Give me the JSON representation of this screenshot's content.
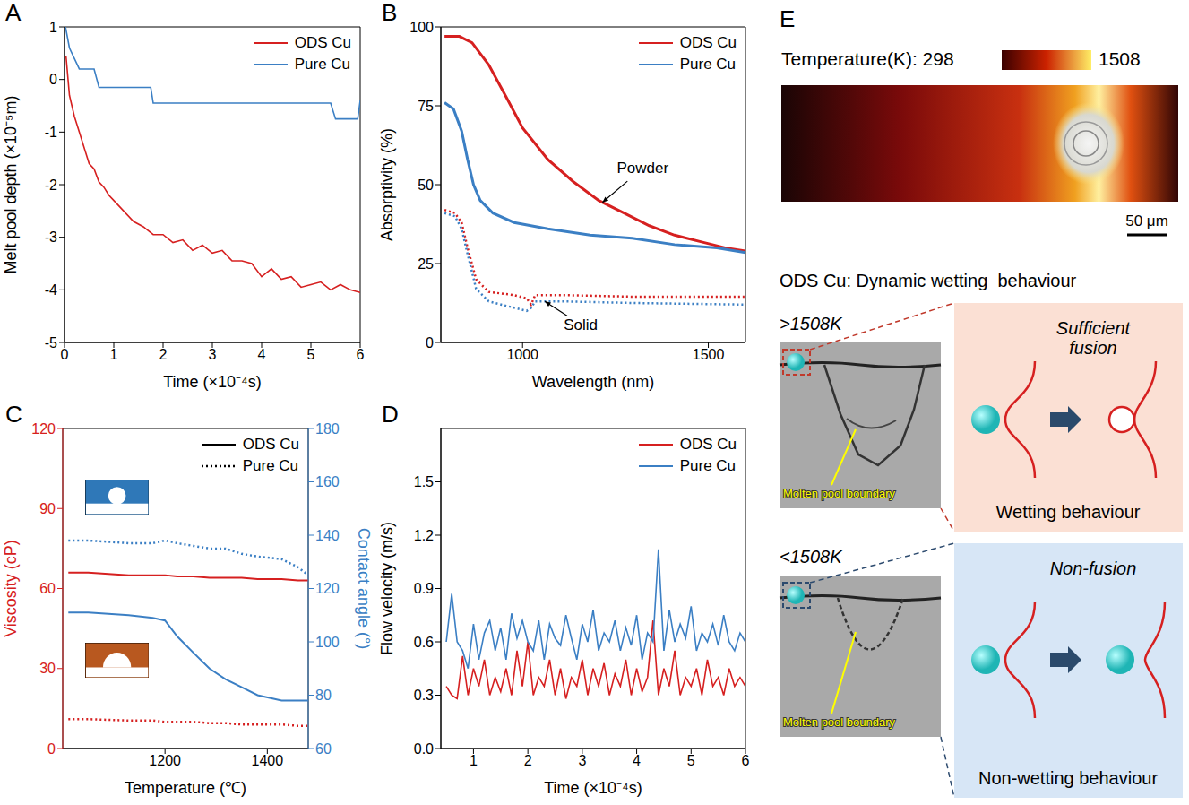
{
  "chart_data": [
    {
      "panel": "A",
      "type": "line",
      "x_label": "Time (×10⁻⁴s)",
      "y_label": "Melt pool depth (×10⁻⁵m)",
      "xlim": [
        0,
        6
      ],
      "xticks": [
        0,
        1,
        2,
        3,
        4,
        5,
        6
      ],
      "ylim": [
        -5,
        1
      ],
      "yticks": [
        -5,
        -4,
        -3,
        -2,
        -1,
        0,
        1
      ],
      "grid": false,
      "legend": "upper right",
      "series": [
        {
          "name": "ODS Cu",
          "color": "#d62020",
          "line_style": "solid",
          "x": [
            0.03,
            0.1,
            0.2,
            0.3,
            0.4,
            0.5,
            0.6,
            0.7,
            0.8,
            0.9,
            1.0,
            1.2,
            1.4,
            1.6,
            1.8,
            2.0,
            2.2,
            2.4,
            2.6,
            2.8,
            3.0,
            3.2,
            3.4,
            3.6,
            3.8,
            4.0,
            4.2,
            4.4,
            4.6,
            4.8,
            5.0,
            5.2,
            5.4,
            5.6,
            5.8,
            6.0
          ],
          "values": [
            0.45,
            -0.3,
            -0.7,
            -1.0,
            -1.3,
            -1.6,
            -1.7,
            -1.95,
            -2.05,
            -2.2,
            -2.3,
            -2.5,
            -2.7,
            -2.8,
            -2.95,
            -2.95,
            -3.1,
            -3.05,
            -3.25,
            -3.15,
            -3.3,
            -3.25,
            -3.45,
            -3.45,
            -3.5,
            -3.75,
            -3.6,
            -3.8,
            -3.75,
            -3.95,
            -3.9,
            -3.85,
            -4.0,
            -3.9,
            -4.0,
            -4.05
          ]
        },
        {
          "name": "Pure Cu",
          "color": "#3b7fc4",
          "line_style": "solid",
          "x": [
            0.02,
            0.1,
            0.3,
            0.6,
            0.7,
            1.75,
            1.8,
            5.4,
            5.5,
            5.95,
            6.0
          ],
          "values": [
            1.0,
            0.6,
            0.2,
            0.2,
            -0.15,
            -0.15,
            -0.45,
            -0.45,
            -0.75,
            -0.75,
            -0.4
          ]
        }
      ]
    },
    {
      "panel": "B",
      "type": "line",
      "x_label": "Wavelength (nm)",
      "y_label": "Absorptivity (%)",
      "xlim": [
        780,
        1600
      ],
      "xticks": [
        1000,
        1500
      ],
      "ylim": [
        0,
        100
      ],
      "yticks": [
        0,
        25,
        50,
        75,
        100
      ],
      "grid": false,
      "legend": "upper right",
      "series": [
        {
          "name": "ODS Cu",
          "color": "#d62020",
          "line_style": "solid",
          "x": [
            790,
            830,
            864,
            909,
            955,
            1000,
            1068,
            1136,
            1205,
            1273,
            1341,
            1409,
            1477,
            1545,
            1600
          ],
          "values": [
            97,
            97,
            95,
            88,
            78,
            68,
            58,
            51,
            45,
            41,
            37,
            34,
            32,
            30,
            29
          ]
        },
        {
          "name": "Pure Cu",
          "color": "#3b7fc4",
          "line_style": "solid",
          "x": [
            790,
            814,
            836,
            852,
            868,
            886,
            920,
            977,
            1068,
            1182,
            1295,
            1409,
            1523,
            1600
          ],
          "values": [
            76,
            74,
            67,
            58,
            50,
            45,
            41,
            38,
            36,
            34,
            33,
            31,
            30,
            28.5
          ]
        },
        {
          "name": "ODS Cu",
          "color": "#d62020",
          "line_style": "dotted",
          "x": [
            790,
            818,
            836,
            852,
            875,
            909,
            977,
            1011,
            1023,
            1034,
            1114,
            1295,
            1600
          ],
          "values": [
            42,
            41,
            38,
            30,
            20,
            16,
            15,
            14,
            12,
            15,
            15,
            14.5,
            14.5
          ]
        },
        {
          "name": "Pure Cu",
          "color": "#3b7fc4",
          "line_style": "dotted",
          "x": [
            790,
            818,
            836,
            852,
            875,
            909,
            977,
            1011,
            1023,
            1034,
            1114,
            1295,
            1600
          ],
          "values": [
            41,
            40,
            36,
            28,
            17,
            13,
            11,
            10,
            11,
            13,
            13,
            12.5,
            12
          ]
        }
      ],
      "annotations": [
        {
          "text": "Powder",
          "x": 1215,
          "y": 44.4
        },
        {
          "text": "Solid",
          "x": 1060,
          "y": 13
        }
      ]
    },
    {
      "panel": "C",
      "type": "line",
      "x_label": "Temperature (℃)",
      "y_label": "Viscosity (cP)",
      "y2_label": "Contact angle (°)",
      "xlim": [
        1000,
        1480
      ],
      "xticks": [
        1200,
        1400
      ],
      "ylim": [
        0,
        120
      ],
      "yticks": [
        0,
        30,
        60,
        90,
        120
      ],
      "y2lim": [
        60,
        180
      ],
      "y2ticks": [
        60,
        80,
        100,
        120,
        140,
        160,
        180
      ],
      "grid": false,
      "legend": "upper right",
      "x": [
        1011,
        1050,
        1129,
        1176,
        1200,
        1224,
        1255,
        1287,
        1318,
        1350,
        1381,
        1428,
        1460,
        1480
      ],
      "series": [
        {
          "name": "ODS Cu",
          "color": "#d62020",
          "line_style": "solid",
          "axis": "y",
          "values": [
            66,
            66,
            65,
            65,
            65,
            64.5,
            64.5,
            64,
            64,
            64,
            63.5,
            63.5,
            63,
            63
          ]
        },
        {
          "name": "Pure Cu",
          "color": "#d62020",
          "line_style": "dotted",
          "axis": "y",
          "values": [
            11,
            11,
            10.5,
            10.5,
            10,
            10,
            10,
            9.5,
            9.5,
            9,
            9,
            9,
            8.5,
            8.5
          ]
        },
        {
          "name": "ODS Cu",
          "color": "#3b7fc4",
          "line_style": "solid",
          "axis": "y2",
          "values": [
            111,
            111,
            110,
            109,
            108,
            102,
            96,
            90,
            86,
            83,
            80,
            78,
            78,
            78
          ]
        },
        {
          "name": "Pure Cu",
          "color": "#3b7fc4",
          "line_style": "dotted",
          "axis": "y2",
          "values": [
            138,
            138,
            137,
            137,
            138,
            137,
            136,
            135,
            135,
            133,
            132,
            131,
            128,
            125
          ]
        }
      ]
    },
    {
      "panel": "D",
      "type": "line",
      "x_label": "Time (×10⁻⁴s)",
      "y_label": "Flow velocity (m/s)",
      "xlim": [
        0.4,
        6
      ],
      "xticks": [
        1,
        2,
        3,
        4,
        5,
        6
      ],
      "ylim": [
        0,
        1.8
      ],
      "yticks": [
        {
          "value": 0,
          "label": "0.0"
        },
        0.3,
        0.6,
        0.9,
        1.2,
        1.5
      ],
      "grid": false,
      "legend": "upper right",
      "x": [
        0.5,
        0.6,
        0.7,
        0.8,
        0.9,
        1.0,
        1.1,
        1.2,
        1.3,
        1.4,
        1.5,
        1.6,
        1.7,
        1.8,
        1.9,
        2.0,
        2.1,
        2.2,
        2.3,
        2.4,
        2.5,
        2.6,
        2.7,
        2.8,
        2.9,
        3.0,
        3.1,
        3.2,
        3.3,
        3.4,
        3.5,
        3.6,
        3.7,
        3.8,
        3.9,
        4.0,
        4.1,
        4.2,
        4.3,
        4.4,
        4.5,
        4.6,
        4.7,
        4.8,
        4.9,
        5.0,
        5.1,
        5.2,
        5.3,
        5.4,
        5.5,
        5.6,
        5.7,
        5.8,
        5.9,
        6.0
      ],
      "series": [
        {
          "name": "ODS Cu",
          "color": "#d62020",
          "line_style": "solid",
          "values": [
            0.35,
            0.3,
            0.28,
            0.52,
            0.3,
            0.45,
            0.35,
            0.5,
            0.3,
            0.4,
            0.32,
            0.45,
            0.3,
            0.55,
            0.35,
            0.6,
            0.3,
            0.4,
            0.35,
            0.5,
            0.3,
            0.45,
            0.28,
            0.4,
            0.35,
            0.5,
            0.3,
            0.45,
            0.35,
            0.48,
            0.3,
            0.42,
            0.35,
            0.5,
            0.3,
            0.45,
            0.32,
            0.4,
            0.72,
            0.3,
            0.45,
            0.35,
            0.55,
            0.3,
            0.4,
            0.35,
            0.45,
            0.3,
            0.5,
            0.35,
            0.4,
            0.3,
            0.45,
            0.35,
            0.4,
            0.35
          ]
        },
        {
          "name": "Pure Cu",
          "color": "#3b7fc4",
          "line_style": "solid",
          "values": [
            0.6,
            0.87,
            0.6,
            0.55,
            0.45,
            0.7,
            0.5,
            0.65,
            0.72,
            0.55,
            0.68,
            0.5,
            0.76,
            0.62,
            0.72,
            0.6,
            0.55,
            0.72,
            0.5,
            0.7,
            0.62,
            0.58,
            0.75,
            0.62,
            0.5,
            0.7,
            0.6,
            0.78,
            0.55,
            0.65,
            0.6,
            0.72,
            0.55,
            0.68,
            0.58,
            0.75,
            0.5,
            0.65,
            0.6,
            1.12,
            0.55,
            0.78,
            0.6,
            0.7,
            0.62,
            0.8,
            0.55,
            0.65,
            0.6,
            0.7,
            0.58,
            0.75,
            0.6,
            0.55,
            0.65,
            0.6
          ]
        }
      ]
    }
  ],
  "diagram": {
    "panel": "E",
    "colorbar": {
      "label": "Temperature(K):",
      "min": 298,
      "max": 1508
    },
    "scale_bar": "50 μm",
    "title": "ODS Cu: Dynamic wetting  behaviour",
    "cases": [
      {
        "condition": ">1508K",
        "pool_label": "Molten pool boundary",
        "process": "Sufficient fusion",
        "result": "Wetting behaviour"
      },
      {
        "condition": "<1508K",
        "pool_label": "Molten pool boundary",
        "process": "Non-fusion",
        "result": "Non-wetting behaviour"
      }
    ]
  }
}
